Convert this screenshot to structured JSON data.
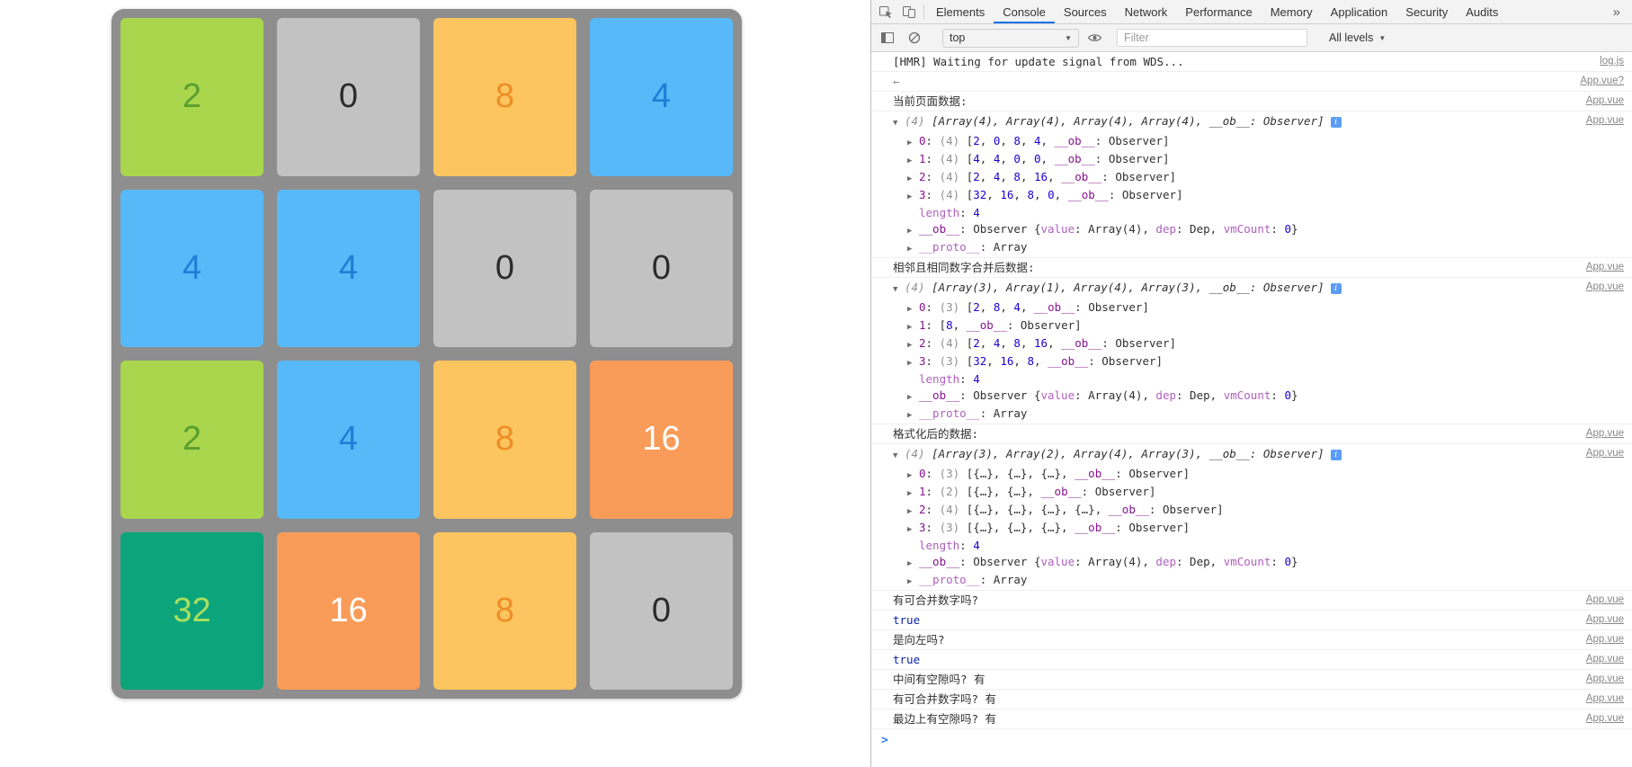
{
  "game": {
    "palette": {
      "board_bg": "#8e8e8e",
      "green": {
        "bg": "#a9d64c",
        "fg": "#5a9e2f"
      },
      "gray": {
        "bg": "#c2c2c2",
        "fg": "#2b2b2b"
      },
      "yellow": {
        "bg": "#fcc55f",
        "fg": "#ee8d26"
      },
      "blue": {
        "bg": "#57b9f8",
        "fg": "#1f7ed6"
      },
      "orange": {
        "bg": "#f99c59",
        "fg": "#ffffff"
      },
      "teal": {
        "bg": "#0ba47b",
        "fg": "#a9e05e"
      }
    },
    "tiles": [
      [
        {
          "v": "2",
          "c": "green"
        },
        {
          "v": "0",
          "c": "gray"
        },
        {
          "v": "8",
          "c": "yellow"
        },
        {
          "v": "4",
          "c": "blue"
        }
      ],
      [
        {
          "v": "4",
          "c": "blue"
        },
        {
          "v": "4",
          "c": "blue"
        },
        {
          "v": "0",
          "c": "gray"
        },
        {
          "v": "0",
          "c": "gray"
        }
      ],
      [
        {
          "v": "2",
          "c": "green"
        },
        {
          "v": "4",
          "c": "blue"
        },
        {
          "v": "8",
          "c": "yellow"
        },
        {
          "v": "16",
          "c": "orange"
        }
      ],
      [
        {
          "v": "32",
          "c": "teal"
        },
        {
          "v": "16",
          "c": "orange"
        },
        {
          "v": "8",
          "c": "yellow"
        },
        {
          "v": "0",
          "c": "gray"
        }
      ]
    ]
  },
  "devtools": {
    "accent": "#1a73e8",
    "tabs": [
      {
        "label": "Elements"
      },
      {
        "label": "Console",
        "active": true
      },
      {
        "label": "Sources"
      },
      {
        "label": "Network"
      },
      {
        "label": "Performance"
      },
      {
        "label": "Memory"
      },
      {
        "label": "Application"
      },
      {
        "label": "Security"
      },
      {
        "label": "Audits"
      }
    ],
    "tabs_overflow": "»",
    "toolbar": {
      "context_label": "top",
      "caret": "▼",
      "filter_placeholder": "Filter",
      "levels_label": "All levels"
    },
    "console": {
      "icons": {
        "collapse": "▼",
        "expand": "▶",
        "info": "i"
      },
      "prompt_chevron": ">",
      "messages": [
        {
          "seg": [
            [
              "p",
              "[HMR] Waiting for update signal from WDS..."
            ]
          ],
          "link": "log.js"
        },
        {
          "seg": [
            [
              "f",
              "←"
            ]
          ],
          "link": "App.vue?"
        },
        {
          "seg": [
            [
              "p",
              "当前页面数据:"
            ]
          ],
          "link": "App.vue"
        },
        {
          "arrow": "open",
          "badge": true,
          "link": "App.vue",
          "seg": [
            [
              "fi",
              "(4) "
            ],
            [
              "i",
              "[Array(4), Array(4), Array(4), Array(4), __ob__: Observer]"
            ]
          ]
        },
        {
          "child": true,
          "arrow": "closed",
          "seg": [
            [
              "k",
              "0"
            ],
            [
              "p",
              ": "
            ],
            [
              "f",
              "(4) "
            ],
            [
              "p",
              "["
            ],
            [
              "n",
              "2"
            ],
            [
              "p",
              ", "
            ],
            [
              "n",
              "0"
            ],
            [
              "p",
              ", "
            ],
            [
              "n",
              "8"
            ],
            [
              "p",
              ", "
            ],
            [
              "n",
              "4"
            ],
            [
              "p",
              ", "
            ],
            [
              "k",
              "__ob__"
            ],
            [
              "p",
              ": Observer]"
            ]
          ]
        },
        {
          "child": true,
          "arrow": "closed",
          "seg": [
            [
              "k",
              "1"
            ],
            [
              "p",
              ": "
            ],
            [
              "f",
              "(4) "
            ],
            [
              "p",
              "["
            ],
            [
              "n",
              "4"
            ],
            [
              "p",
              ", "
            ],
            [
              "n",
              "4"
            ],
            [
              "p",
              ", "
            ],
            [
              "n",
              "0"
            ],
            [
              "p",
              ", "
            ],
            [
              "n",
              "0"
            ],
            [
              "p",
              ", "
            ],
            [
              "k",
              "__ob__"
            ],
            [
              "p",
              ": Observer]"
            ]
          ]
        },
        {
          "child": true,
          "arrow": "closed",
          "seg": [
            [
              "k",
              "2"
            ],
            [
              "p",
              ": "
            ],
            [
              "f",
              "(4) "
            ],
            [
              "p",
              "["
            ],
            [
              "n",
              "2"
            ],
            [
              "p",
              ", "
            ],
            [
              "n",
              "4"
            ],
            [
              "p",
              ", "
            ],
            [
              "n",
              "8"
            ],
            [
              "p",
              ", "
            ],
            [
              "n",
              "16"
            ],
            [
              "p",
              ", "
            ],
            [
              "k",
              "__ob__"
            ],
            [
              "p",
              ": Observer]"
            ]
          ]
        },
        {
          "child": true,
          "arrow": "closed",
          "seg": [
            [
              "k",
              "3"
            ],
            [
              "p",
              ": "
            ],
            [
              "f",
              "(4) "
            ],
            [
              "p",
              "["
            ],
            [
              "n",
              "32"
            ],
            [
              "p",
              ", "
            ],
            [
              "n",
              "16"
            ],
            [
              "p",
              ", "
            ],
            [
              "n",
              "8"
            ],
            [
              "p",
              ", "
            ],
            [
              "n",
              "0"
            ],
            [
              "p",
              ", "
            ],
            [
              "k",
              "__ob__"
            ],
            [
              "p",
              ": Observer]"
            ]
          ]
        },
        {
          "child": true,
          "slot": true,
          "seg": [
            [
              "kf",
              "length"
            ],
            [
              "p",
              ": "
            ],
            [
              "n",
              "4"
            ]
          ]
        },
        {
          "child": true,
          "arrow": "closed",
          "seg": [
            [
              "k",
              "__ob__"
            ],
            [
              "p",
              ": Observer {"
            ],
            [
              "kf",
              "value"
            ],
            [
              "p",
              ": Array(4), "
            ],
            [
              "kf",
              "dep"
            ],
            [
              "p",
              ": Dep, "
            ],
            [
              "kf",
              "vmCount"
            ],
            [
              "p",
              ": "
            ],
            [
              "n",
              "0"
            ],
            [
              "p",
              "}"
            ]
          ]
        },
        {
          "child": true,
          "arrow": "closed",
          "seg": [
            [
              "kf",
              "__proto__"
            ],
            [
              "p",
              ": Array"
            ]
          ]
        },
        {
          "seg": [
            [
              "p",
              "相邻且相同数字合并后数据:"
            ]
          ],
          "link": "App.vue"
        },
        {
          "arrow": "open",
          "badge": true,
          "link": "App.vue",
          "seg": [
            [
              "fi",
              "(4) "
            ],
            [
              "i",
              "[Array(3), Array(1), Array(4), Array(3), __ob__: Observer]"
            ]
          ]
        },
        {
          "child": true,
          "arrow": "closed",
          "seg": [
            [
              "k",
              "0"
            ],
            [
              "p",
              ": "
            ],
            [
              "f",
              "(3) "
            ],
            [
              "p",
              "["
            ],
            [
              "n",
              "2"
            ],
            [
              "p",
              ", "
            ],
            [
              "n",
              "8"
            ],
            [
              "p",
              ", "
            ],
            [
              "n",
              "4"
            ],
            [
              "p",
              ", "
            ],
            [
              "k",
              "__ob__"
            ],
            [
              "p",
              ": Observer]"
            ]
          ]
        },
        {
          "child": true,
          "arrow": "closed",
          "seg": [
            [
              "k",
              "1"
            ],
            [
              "p",
              ": ["
            ],
            [
              "n",
              "8"
            ],
            [
              "p",
              ", "
            ],
            [
              "k",
              "__ob__"
            ],
            [
              "p",
              ": Observer]"
            ]
          ]
        },
        {
          "child": true,
          "arrow": "closed",
          "seg": [
            [
              "k",
              "2"
            ],
            [
              "p",
              ": "
            ],
            [
              "f",
              "(4) "
            ],
            [
              "p",
              "["
            ],
            [
              "n",
              "2"
            ],
            [
              "p",
              ", "
            ],
            [
              "n",
              "4"
            ],
            [
              "p",
              ", "
            ],
            [
              "n",
              "8"
            ],
            [
              "p",
              ", "
            ],
            [
              "n",
              "16"
            ],
            [
              "p",
              ", "
            ],
            [
              "k",
              "__ob__"
            ],
            [
              "p",
              ": Observer]"
            ]
          ]
        },
        {
          "child": true,
          "arrow": "closed",
          "seg": [
            [
              "k",
              "3"
            ],
            [
              "p",
              ": "
            ],
            [
              "f",
              "(3) "
            ],
            [
              "p",
              "["
            ],
            [
              "n",
              "32"
            ],
            [
              "p",
              ", "
            ],
            [
              "n",
              "16"
            ],
            [
              "p",
              ", "
            ],
            [
              "n",
              "8"
            ],
            [
              "p",
              ", "
            ],
            [
              "k",
              "__ob__"
            ],
            [
              "p",
              ": Observer]"
            ]
          ]
        },
        {
          "child": true,
          "slot": true,
          "seg": [
            [
              "kf",
              "length"
            ],
            [
              "p",
              ": "
            ],
            [
              "n",
              "4"
            ]
          ]
        },
        {
          "child": true,
          "arrow": "closed",
          "seg": [
            [
              "k",
              "__ob__"
            ],
            [
              "p",
              ": Observer {"
            ],
            [
              "kf",
              "value"
            ],
            [
              "p",
              ": Array(4), "
            ],
            [
              "kf",
              "dep"
            ],
            [
              "p",
              ": Dep, "
            ],
            [
              "kf",
              "vmCount"
            ],
            [
              "p",
              ": "
            ],
            [
              "n",
              "0"
            ],
            [
              "p",
              "}"
            ]
          ]
        },
        {
          "child": true,
          "arrow": "closed",
          "seg": [
            [
              "kf",
              "__proto__"
            ],
            [
              "p",
              ": Array"
            ]
          ]
        },
        {
          "seg": [
            [
              "p",
              "格式化后的数据:"
            ]
          ],
          "link": "App.vue"
        },
        {
          "arrow": "open",
          "badge": true,
          "link": "App.vue",
          "seg": [
            [
              "fi",
              "(4) "
            ],
            [
              "i",
              "[Array(3), Array(2), Array(4), Array(3), __ob__: Observer]"
            ]
          ]
        },
        {
          "child": true,
          "arrow": "closed",
          "seg": [
            [
              "k",
              "0"
            ],
            [
              "p",
              ": "
            ],
            [
              "f",
              "(3) "
            ],
            [
              "p",
              "[{…}, {…}, {…}, "
            ],
            [
              "k",
              "__ob__"
            ],
            [
              "p",
              ": Observer]"
            ]
          ]
        },
        {
          "child": true,
          "arrow": "closed",
          "seg": [
            [
              "k",
              "1"
            ],
            [
              "p",
              ": "
            ],
            [
              "f",
              "(2) "
            ],
            [
              "p",
              "[{…}, {…}, "
            ],
            [
              "k",
              "__ob__"
            ],
            [
              "p",
              ": Observer]"
            ]
          ]
        },
        {
          "child": true,
          "arrow": "closed",
          "seg": [
            [
              "k",
              "2"
            ],
            [
              "p",
              ": "
            ],
            [
              "f",
              "(4) "
            ],
            [
              "p",
              "[{…}, {…}, {…}, {…}, "
            ],
            [
              "k",
              "__ob__"
            ],
            [
              "p",
              ": Observer]"
            ]
          ]
        },
        {
          "child": true,
          "arrow": "closed",
          "seg": [
            [
              "k",
              "3"
            ],
            [
              "p",
              ": "
            ],
            [
              "f",
              "(3) "
            ],
            [
              "p",
              "[{…}, {…}, {…}, "
            ],
            [
              "k",
              "__ob__"
            ],
            [
              "p",
              ": Observer]"
            ]
          ]
        },
        {
          "child": true,
          "slot": true,
          "seg": [
            [
              "kf",
              "length"
            ],
            [
              "p",
              ": "
            ],
            [
              "n",
              "4"
            ]
          ]
        },
        {
          "child": true,
          "arrow": "closed",
          "seg": [
            [
              "k",
              "__ob__"
            ],
            [
              "p",
              ": Observer {"
            ],
            [
              "kf",
              "value"
            ],
            [
              "p",
              ": Array(4), "
            ],
            [
              "kf",
              "dep"
            ],
            [
              "p",
              ": Dep, "
            ],
            [
              "kf",
              "vmCount"
            ],
            [
              "p",
              ": "
            ],
            [
              "n",
              "0"
            ],
            [
              "p",
              "}"
            ]
          ]
        },
        {
          "child": true,
          "arrow": "closed",
          "seg": [
            [
              "kf",
              "__proto__"
            ],
            [
              "p",
              ": Array"
            ]
          ]
        },
        {
          "seg": [
            [
              "p",
              "有可合并数字吗?"
            ]
          ],
          "link": "App.vue"
        },
        {
          "seg": [
            [
              "b",
              "true"
            ]
          ],
          "link": "App.vue"
        },
        {
          "seg": [
            [
              "p",
              "是向左吗?"
            ]
          ],
          "link": "App.vue"
        },
        {
          "seg": [
            [
              "b",
              "true"
            ]
          ],
          "link": "App.vue"
        },
        {
          "seg": [
            [
              "p",
              "中间有空隙吗? 有"
            ]
          ],
          "link": "App.vue"
        },
        {
          "seg": [
            [
              "p",
              "有可合并数字吗? 有"
            ]
          ],
          "link": "App.vue"
        },
        {
          "seg": [
            [
              "p",
              "最边上有空隙吗? 有"
            ]
          ],
          "link": "App.vue"
        }
      ]
    }
  }
}
